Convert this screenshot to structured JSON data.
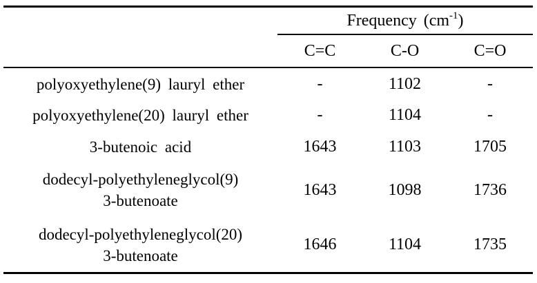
{
  "table": {
    "header": {
      "frequency_title": {
        "main": "Frequency (cm",
        "sup": "-1",
        "close": ")"
      },
      "columns": [
        "C=C",
        "C-O",
        "C=O"
      ]
    },
    "rows": [
      {
        "name": "polyoxyethylene(9) lauryl ether",
        "values": [
          "-",
          "1102",
          "-"
        ]
      },
      {
        "name": "polyoxyethylene(20) lauryl ether",
        "values": [
          "-",
          "1104",
          "-"
        ]
      },
      {
        "name": "3-butenoic acid",
        "values": [
          "1643",
          "1103",
          "1705"
        ]
      },
      {
        "name": "dodecyl-polyethyleneglycol(9)\n3-butenoate",
        "values": [
          "1643",
          "1098",
          "1736"
        ]
      },
      {
        "name": "dodecyl-polyethyleneglycol(20)\n3-butenoate",
        "values": [
          "1646",
          "1104",
          "1735"
        ]
      }
    ]
  }
}
